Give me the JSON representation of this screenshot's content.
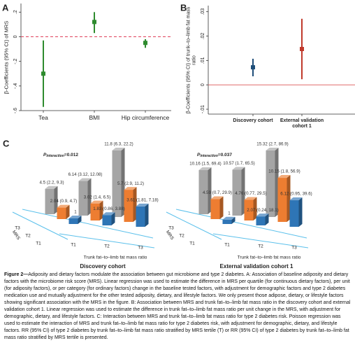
{
  "panels": [
    "A",
    "B",
    "C"
  ],
  "chart_data": [
    {
      "type": "forest",
      "y_label": "β-Coefficients (95% CI) of MRS",
      "categories": [
        "Tea",
        "BMI",
        "Hip circumference"
      ],
      "values": [
        -0.3,
        0.12,
        -0.05
      ],
      "lower": [
        -0.57,
        0.03,
        -0.09
      ],
      "upper": [
        -0.03,
        0.2,
        -0.02
      ],
      "color": "#2e8b2e",
      "ylim": [
        -0.6,
        0.27
      ],
      "yticks": [
        {
          "value": 0.2,
          "label": ".2"
        },
        0,
        {
          "value": -0.2,
          "label": "-.2"
        },
        {
          "value": -0.4,
          "label": "-.4"
        },
        {
          "value": -0.6,
          "label": "-.6"
        }
      ],
      "zero_line": {
        "color": "#e0405a",
        "style": "dashed"
      }
    },
    {
      "type": "forest",
      "y_label": "β-Coefficients (95% CI) of trunk–to–limb fat mass ratio",
      "categories": [
        "Discovery cohort",
        "External validation cohort 1"
      ],
      "values": [
        0.0072,
        0.0147
      ],
      "lower": [
        0.0035,
        0.0023
      ],
      "upper": [
        0.0107,
        0.0271
      ],
      "colors": [
        "#1f4e79",
        "#c0392b"
      ],
      "ylim": [
        -0.012,
        0.0325
      ],
      "yticks": [
        {
          "value": 0.03,
          "label": ".03"
        },
        {
          "value": 0.02,
          "label": ".02"
        },
        {
          "value": 0.01,
          "label": ".01"
        },
        0,
        {
          "value": -0.01,
          "label": "-.01"
        }
      ],
      "zero_line": {
        "color": "#e06a6a",
        "style": "solid"
      }
    },
    {
      "type": "bar3d",
      "title": "Discovery cohort",
      "annotation": {
        "symbol": "P",
        "subscript": "interaction",
        "text": "=0.012"
      },
      "x_label": "Trunk fat–to–limb fat mass ratio",
      "depth_label": "MRS",
      "categories": [
        "T1",
        "T2",
        "T3"
      ],
      "series": [
        {
          "name": "T1",
          "color": "#2e75b6",
          "values": [
            1,
            1.83,
            3.61
          ],
          "value_labels": [
            "1",
            "1.83 (0.86, 3.88)",
            "3.61 (1.81, 7.18)"
          ]
        },
        {
          "name": "T2",
          "color": "#ed7d31",
          "values": [
            2.04,
            3.02,
            5.7
          ],
          "value_labels": [
            "2.04 (0.9, 4.7)",
            "3.02 (1.4, 6.5)",
            "5.7 (2.9, 11.2)"
          ]
        },
        {
          "name": "T3",
          "color": "#a5a5a5",
          "values": [
            4.5,
            6.14,
            11.8
          ],
          "value_labels": [
            "4.5 (2.2, 9.3)",
            "6.14 (3.12, 12.08)",
            "11.8 (6.3, 22.2)"
          ]
        }
      ]
    },
    {
      "type": "bar3d",
      "title": "External validation cohort 1",
      "annotation": {
        "symbol": "P",
        "subscript": "interaction",
        "text": "=0.037"
      },
      "x_label": "Trunk fat–to–limb fat mass ratio",
      "depth_label": "MRS",
      "categories": [
        "T1",
        "T2",
        "T3"
      ],
      "series": [
        {
          "name": "T1",
          "color": "#2e75b6",
          "values": [
            1,
            2.07,
            6.12
          ],
          "value_labels": [
            "1",
            "2.07 (0.24, 18.1)",
            "6.12 (0.95, 39.6)"
          ]
        },
        {
          "name": "T2",
          "color": "#ed7d31",
          "values": [
            4.59,
            4.76,
            10.15
          ],
          "value_labels": [
            "4.59 (0.7, 29.9)",
            "4.76 (0.77, 29.5)",
            "10.15 (1.8, 56.9)"
          ]
        },
        {
          "name": "T3",
          "color": "#a5a5a5",
          "values": [
            10.16,
            10.57,
            15.32
          ],
          "value_labels": [
            "10.16 (1.5, 69.4)",
            "10.57 (1.7, 65.5)",
            "15.32 (2.7, 86.9)"
          ]
        }
      ]
    }
  ],
  "caption": {
    "label": "Figure 2—",
    "text": "Adiposity and dietary factors modulate the association between gut microbiome and type 2 diabetes. A: Association of baseline adiposity and dietary factors with the microbiome risk score (MRS). Linear regression was used to estimate the difference in MRS per quartile (for continuous dietary factors), per unit (for adiposity factors), or per category (for ordinary factors) change in the baseline tested factors, with adjustment for demographic factors and type 2 diabetes medication use and mutually adjustment for the other tested adiposity, dietary, and lifestyle factors. We only present those adipose, dietary, or lifestyle factors showing significant association with the MRS in the figure. B: Association between MRS and trunk fat–to–limb fat mass ratio in the discovery cohort and external validation cohort 1. Linear regression was used to estimate the difference in trunk fat–to–limb fat mass ratio per unit change in the MRS, with adjustment for demographic, dietary, and lifestyle factors. C: Interaction between MRS and trunk fat–to–limb fat mass ratio for type 2 diabetes risk. Poisson regression was used to estimate the interaction of MRS and trunk fat–to–limb fat mass ratio for type 2 diabetes risk, with adjustment for demographic, dietary, and lifestyle factors. RR (95% CI) of type 2 diabetes by trunk fat–to–limb fat mass ratio stratified by MRS tertile (T) or RR (95% CI) of type 2 diabetes by trunk fat–to–limb fat mass ratio stratified by MRS tertile is presented."
  }
}
